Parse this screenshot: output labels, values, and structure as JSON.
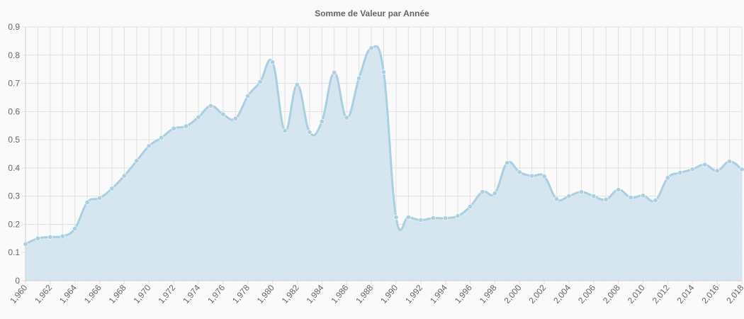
{
  "chart_data": {
    "type": "area",
    "title": "Somme de Valeur par Année",
    "xlabel": "",
    "ylabel": "",
    "x": [
      1960,
      1961,
      1962,
      1963,
      1964,
      1965,
      1966,
      1967,
      1968,
      1969,
      1970,
      1971,
      1972,
      1973,
      1974,
      1975,
      1976,
      1977,
      1978,
      1979,
      1980,
      1981,
      1982,
      1983,
      1984,
      1985,
      1986,
      1987,
      1988,
      1989,
      1990,
      1991,
      1992,
      1993,
      1994,
      1995,
      1996,
      1997,
      1998,
      1999,
      2000,
      2001,
      2002,
      2003,
      2004,
      2005,
      2006,
      2007,
      2008,
      2009,
      2010,
      2011,
      2012,
      2013,
      2014,
      2015,
      2016,
      2017,
      2018
    ],
    "x_tick_labels": [
      "1,960",
      "1,962",
      "1,964",
      "1,966",
      "1,968",
      "1,970",
      "1,972",
      "1,974",
      "1,976",
      "1,978",
      "1,980",
      "1,982",
      "1,984",
      "1,986",
      "1,988",
      "1,990",
      "1,992",
      "1,994",
      "1,996",
      "1,998",
      "2,000",
      "2,002",
      "2,004",
      "2,006",
      "2,008",
      "2,010",
      "2,012",
      "2,014",
      "2,016",
      "2,018"
    ],
    "y_tick_labels": [
      "0",
      "0.1",
      "0.2",
      "0.3",
      "0.4",
      "0.5",
      "0.6",
      "0.7",
      "0.8",
      "0.9"
    ],
    "series": [
      {
        "values": [
          0.13,
          0.15,
          0.155,
          0.158,
          0.185,
          0.278,
          0.293,
          0.327,
          0.372,
          0.425,
          0.478,
          0.507,
          0.54,
          0.548,
          0.58,
          0.62,
          0.59,
          0.575,
          0.655,
          0.705,
          0.775,
          0.532,
          0.695,
          0.527,
          0.565,
          0.738,
          0.578,
          0.718,
          0.825,
          0.74,
          0.225,
          0.225,
          0.215,
          0.222,
          0.222,
          0.23,
          0.263,
          0.315,
          0.31,
          0.418,
          0.385,
          0.372,
          0.37,
          0.29,
          0.3,
          0.315,
          0.3,
          0.288,
          0.323,
          0.295,
          0.302,
          0.285,
          0.365,
          0.383,
          0.395,
          0.412,
          0.39,
          0.423,
          0.395
        ],
        "color": "#a8cfe2"
      }
    ],
    "xlim": [
      1960,
      2018
    ],
    "ylim": [
      0,
      0.9
    ],
    "grid": true,
    "legend": "none",
    "colors": {
      "line": "#a8cfe2",
      "fill": "#d0e3ee",
      "grid": "#e0e0e0",
      "text": "#666666"
    }
  }
}
